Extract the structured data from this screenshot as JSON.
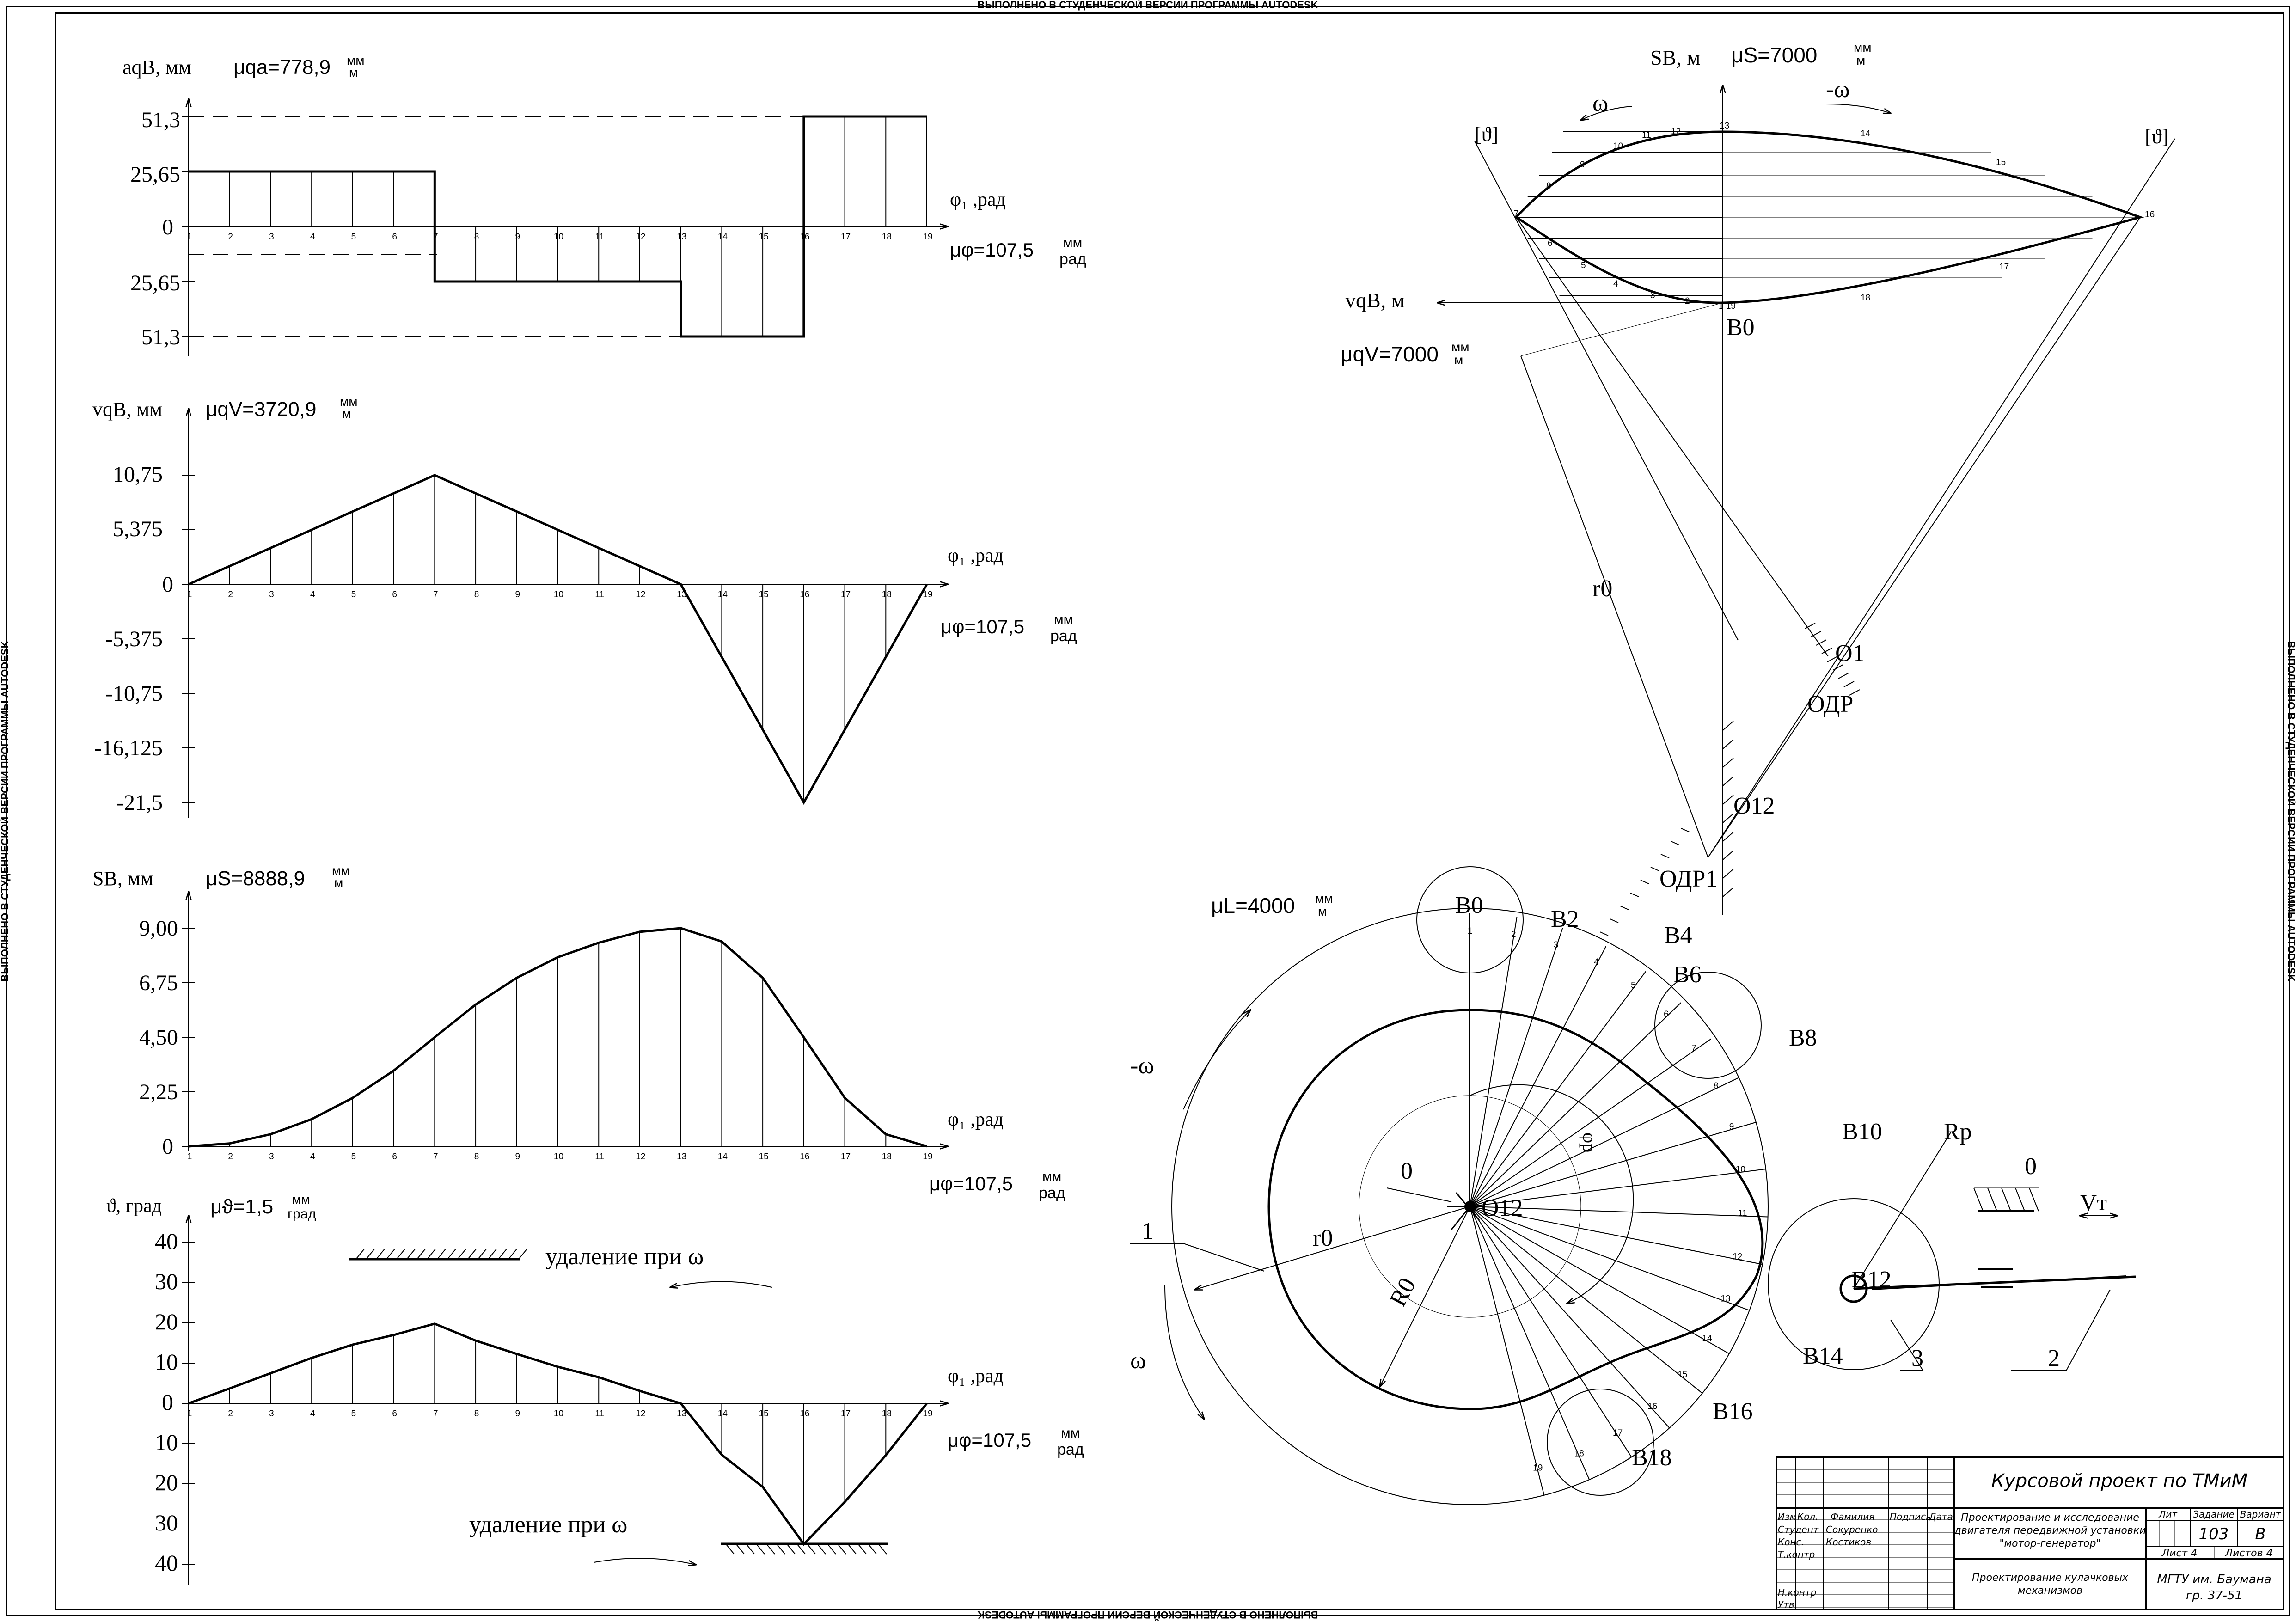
{
  "watermark": "ВЫПОЛНЕНО В СТУДЕНЧЕСКОЙ ВЕРСИИ ПРОГРАММЫ AUTODESK",
  "phi_axis_label": "φ₁ ,рад",
  "mu_phi_label": "μφ=107,5",
  "mu_phi_unit_num": "мм",
  "mu_phi_unit_den": "рад",
  "accel": {
    "ylabel": "aqB, мм",
    "scale_label": "μqa=778,9",
    "scale_unit_num": "мм",
    "scale_unit_den": "м",
    "ticks": [
      "51,3",
      "25,65",
      "0",
      "25,65",
      "51,3"
    ]
  },
  "velocity": {
    "ylabel": "vqB, мм",
    "scale_label": "μqV=3720,9",
    "scale_unit_num": "мм",
    "scale_unit_den": "м",
    "ticks": [
      "10,75",
      "5,375",
      "0",
      "-5,375",
      "-10,75",
      "-16,125",
      "-21,5"
    ]
  },
  "displacement": {
    "ylabel": "SB, мм",
    "scale_label": "μS=8888,9",
    "scale_unit_num": "мм",
    "scale_unit_den": "м",
    "ticks": [
      "9,00",
      "6,75",
      "4,50",
      "2,25",
      "0"
    ]
  },
  "angle": {
    "ylabel": "ϑ, град",
    "scale_label": "μϑ=1,5",
    "scale_unit_num": "мм",
    "scale_unit_den": "град",
    "ticks": [
      "40",
      "30",
      "20",
      "10",
      "0",
      "10",
      "20",
      "30",
      "40"
    ],
    "label_top": "удаление при ω",
    "label_bottom": "удаление при ω"
  },
  "chart_data": [
    {
      "type": "line",
      "x": [
        1,
        2,
        3,
        4,
        5,
        6,
        7,
        7,
        8,
        9,
        10,
        11,
        12,
        13,
        13,
        14,
        15,
        16,
        16,
        17,
        18,
        19
      ],
      "y": [
        25.65,
        25.65,
        25.65,
        25.65,
        25.65,
        25.65,
        25.65,
        -25.65,
        -25.65,
        -25.65,
        -25.65,
        -25.65,
        -25.65,
        -25.65,
        -51.3,
        -51.3,
        -51.3,
        -51.3,
        51.3,
        51.3,
        51.3,
        51.3
      ]
    },
    {
      "type": "line",
      "x": [
        1,
        2,
        3,
        4,
        5,
        6,
        7,
        8,
        9,
        10,
        11,
        12,
        13,
        14,
        15,
        16,
        17,
        18,
        19
      ],
      "y": [
        0,
        1.79,
        3.58,
        5.37,
        7.17,
        8.96,
        10.75,
        8.96,
        7.17,
        5.37,
        3.58,
        1.79,
        0,
        -7.17,
        -14.33,
        -21.5,
        -14.33,
        -7.17,
        0
      ]
    },
    {
      "type": "line",
      "x": [
        1,
        2,
        3,
        4,
        5,
        6,
        7,
        8,
        9,
        10,
        11,
        12,
        13,
        14,
        15,
        16,
        17,
        18,
        19
      ],
      "y": [
        0,
        0.12,
        0.5,
        1.12,
        2.0,
        3.12,
        4.5,
        5.85,
        6.95,
        7.8,
        8.4,
        8.85,
        9.0,
        8.45,
        6.95,
        4.5,
        2.0,
        0.5,
        0
      ]
    },
    {
      "type": "line",
      "x": [
        1,
        2,
        3,
        4,
        5,
        6,
        7,
        8,
        9,
        10,
        11,
        12,
        13,
        14,
        15,
        16,
        17,
        18,
        19
      ],
      "y": [
        0,
        3.7,
        7.5,
        11.3,
        14.6,
        17,
        19.8,
        15.6,
        12.3,
        9.1,
        6.5,
        3.1,
        0,
        -12.8,
        -20.8,
        -35,
        -24.5,
        -12.9,
        0
      ]
    }
  ],
  "graph_index_labels": [
    "1",
    "2",
    "3",
    "4",
    "5",
    "6",
    "7",
    "8",
    "9",
    "10",
    "11",
    "12",
    "13",
    "14",
    "15",
    "16",
    "17",
    "18",
    "19"
  ],
  "sv": {
    "s_label": "SB, м",
    "mu_s": "μS=7000",
    "mu_s_unit_num": "мм",
    "mu_s_unit_den": "м",
    "v_label": "vqB, м",
    "mu_v": "μqV=7000",
    "mu_v_unit_num": "мм",
    "mu_v_unit_den": "м",
    "omega": "ω",
    "neg_omega": "-ω",
    "theta_left": "[ϑ]",
    "theta_right": "[ϑ]",
    "b0": "B0",
    "r0": "r0",
    "o1": "O1",
    "odr": "ОДР",
    "o12": "O12",
    "odr1": "ОДР1"
  },
  "cam": {
    "mu_l": "μL=4000",
    "mu_l_unit_num": "мм",
    "mu_l_unit_den": "м",
    "neg_omega": "-ω",
    "omega": "ω",
    "zero_left": "0",
    "zero_right": "0",
    "o12": "O12",
    "r0": "r0",
    "R0": "R0",
    "phi_label": "φр",
    "rp": "Rp",
    "vt": "Vт",
    "b_labels": [
      "B0",
      "B2",
      "B4",
      "B6",
      "B8",
      "B10",
      "B12",
      "B14",
      "B16",
      "B18"
    ],
    "leader_labels": [
      "1",
      "2",
      "3"
    ]
  },
  "title_block": {
    "course_title": "Курсовой проект по ТМиМ",
    "project_title_l1": "Проектирование и исследование",
    "project_title_l2": "двигателя передвижной установки",
    "project_title_l3": "\"мотор-генератор\"",
    "sheet_title_l1": "Проектирование кулачковых",
    "sheet_title_l2": "механизмов",
    "lit_header": "Лит",
    "task_header": "Задание",
    "variant_header": "Вариант",
    "task_value": "103",
    "variant_value": "В",
    "sheet_label": "Лист 4",
    "sheets_label": "Листов 4",
    "org_l1": "МГТУ им. Баумана",
    "org_l2": "гр. 37-51",
    "col_headers": [
      "Изм",
      "Кол.",
      "Фамилия",
      "Подпись",
      "Дата"
    ],
    "roles": [
      "Студент",
      "Конс.",
      "Т.контр",
      "",
      "Н.контр",
      "Утв."
    ],
    "names": [
      "Сокуренко",
      "Костиков"
    ]
  }
}
